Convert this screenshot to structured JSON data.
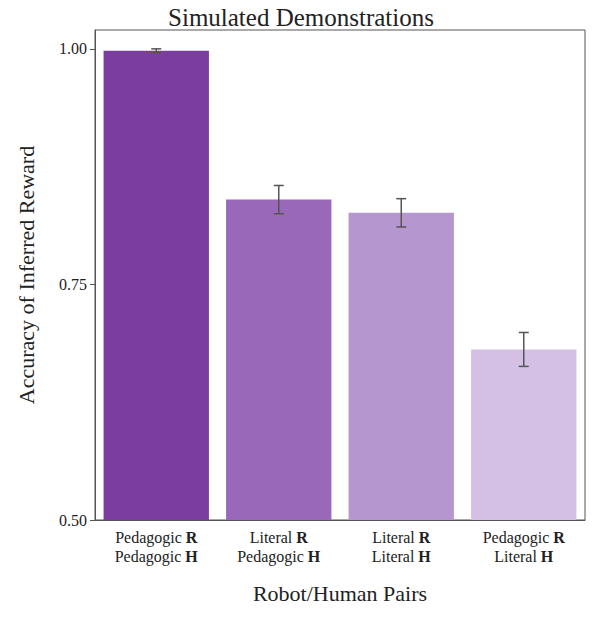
{
  "chart_data": {
    "type": "bar",
    "title": "Simulated Demonstrations",
    "x_label": "Robot/Human Pairs",
    "y_label": "Accuracy of Inferred Reward",
    "categories": [
      "Pedagogic R\nPedagogic H",
      "Literal R\nPedagogic H",
      "Literal R\nLiteral H",
      "Pedagogic R\nLiteral H"
    ],
    "values": [
      0.998,
      0.84,
      0.826,
      0.681
    ],
    "errors": [
      0.002,
      0.015,
      0.015,
      0.018
    ],
    "colors": [
      "#7b3d9f",
      "#9a68b8",
      "#b596cf",
      "#d5c0e5"
    ],
    "ylim": [
      0.5,
      1.02
    ],
    "yticks": [
      {
        "value": 0.5,
        "label": "0.50"
      },
      {
        "value": 0.75,
        "label": "0.75"
      },
      {
        "value": 1.0,
        "label": "1.00"
      }
    ],
    "grid": false
  }
}
